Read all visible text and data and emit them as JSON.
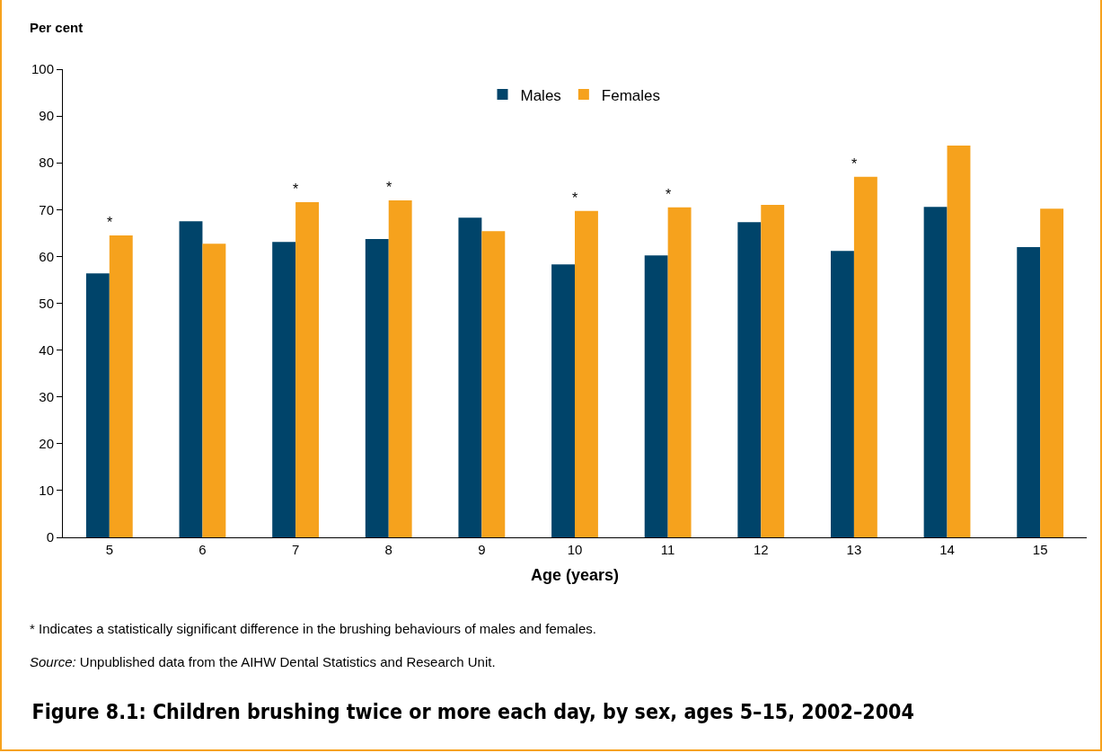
{
  "chart_data": {
    "type": "bar",
    "title": "Figure 8.1: Children brushing twice or more each day, by sex, ages 5–15, 2002–2004",
    "xlabel": "Age (years)",
    "ylabel": "Per cent",
    "categories": [
      "5",
      "6",
      "7",
      "8",
      "9",
      "10",
      "11",
      "12",
      "13",
      "14",
      "15"
    ],
    "series": [
      {
        "name": "Males",
        "color": "#00446a",
        "values": [
          56.4,
          67.5,
          63.1,
          63.7,
          68.3,
          58.3,
          60.2,
          67.3,
          61.2,
          70.6,
          62.0
        ]
      },
      {
        "name": "Females",
        "color": "#f6a21d",
        "values": [
          64.5,
          62.7,
          71.6,
          72.0,
          65.4,
          69.7,
          70.5,
          71.0,
          77.0,
          83.7,
          70.2
        ]
      }
    ],
    "ylim": [
      0,
      100
    ],
    "yticks": [
      0,
      10,
      20,
      30,
      40,
      50,
      60,
      70,
      80,
      90,
      100
    ],
    "grid": false,
    "legend": "top",
    "annotations": [
      {
        "text": "*",
        "x": "5",
        "y": 64.5
      },
      {
        "text": "*",
        "x": "7",
        "y": 71.6
      },
      {
        "text": "*",
        "x": "8",
        "y": 72.0
      },
      {
        "text": "*",
        "x": "10",
        "y": 69.7
      },
      {
        "text": "*",
        "x": "11",
        "y": 70.5
      },
      {
        "text": "*",
        "x": "13",
        "y": 77.0
      },
      "* Indicates a statistically significant difference in the brushing behaviours of males and females.",
      "Source: Unpublished data from the AIHW Dental Statistics and Research Unit."
    ]
  }
}
